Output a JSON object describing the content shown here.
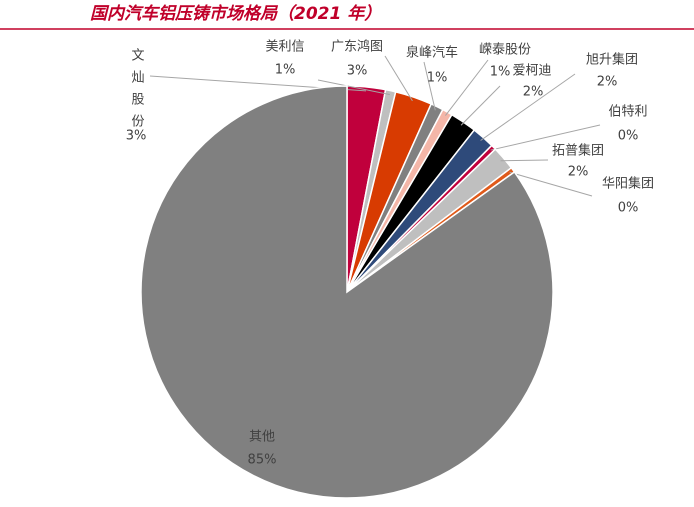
{
  "chart_data": {
    "type": "pie",
    "title": "国内汽车铝压铸市场格局（2021 年）",
    "categories": [
      "文灿股份",
      "美利信",
      "广东鸿图",
      "泉峰汽车",
      "嵘泰股份",
      "爱柯迪",
      "旭升集团",
      "伯特利",
      "拓普集团",
      "华阳集团",
      "其他"
    ],
    "values": [
      3.0,
      0.8,
      2.9,
      1.0,
      0.8,
      2.1,
      1.8,
      0.4,
      1.9,
      0.4,
      84.9
    ],
    "value_labels": [
      "3%",
      "1%",
      "3%",
      "1%",
      "1%",
      "2%",
      "2%",
      "0%",
      "2%",
      "0%",
      "85%"
    ],
    "colors": [
      "#c0003c",
      "#bfbfbf",
      "#d83b01",
      "#808080",
      "#f4b6a8",
      "#000000",
      "#2e4a7a",
      "#c0003c",
      "#bfbfbf",
      "#e05a1a",
      "#808080"
    ]
  }
}
